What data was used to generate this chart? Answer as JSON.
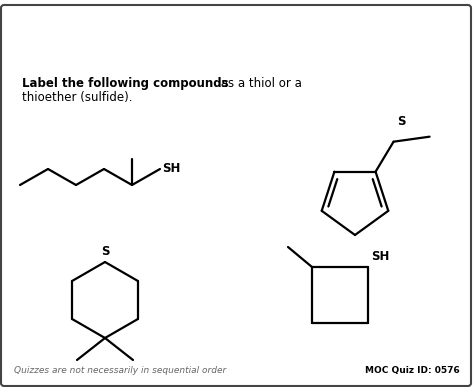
{
  "instruction_bold": "Label the following compounds",
  "instruction_rest": " as a thiol or a",
  "instruction_line2": "thioether (sulfide).",
  "footer_left": "Quizzes are not necessarily in sequential order",
  "footer_right": "MOC Quiz ID: 0576",
  "bg_color": "#ffffff",
  "border_color": "#444444",
  "line_color": "#000000",
  "line_width": 1.6,
  "font_size_instruction": 8.5,
  "font_size_label": 8.5,
  "font_size_footer": 6.5
}
